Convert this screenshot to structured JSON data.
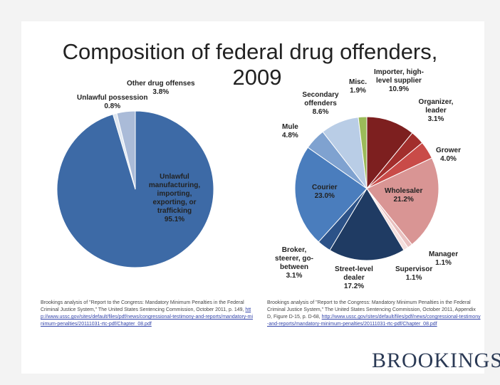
{
  "chart_data": [
    {
      "type": "pie",
      "title": "Composition of federal drug offenders, 2009",
      "slices": [
        {
          "label": "Unlawful manufacturing, importing, exporting, or trafficking",
          "value": 95.1,
          "text": "95.1%",
          "color": "#3d6aa6"
        },
        {
          "label": "Unlawful possession",
          "value": 0.8,
          "text": "0.8%",
          "color": "#dfe7f1"
        },
        {
          "label": "Other drug offenses",
          "value": 3.8,
          "text": "3.8%",
          "color": "#aabbd8"
        }
      ]
    },
    {
      "type": "pie",
      "slices": [
        {
          "label": "Importer, high-level supplier",
          "value": 10.9,
          "text": "10.9%",
          "color": "#7d1f1f"
        },
        {
          "label": "Organizer, leader",
          "value": 3.1,
          "text": "3.1%",
          "color": "#a22e2c"
        },
        {
          "label": "Grower",
          "value": 4.0,
          "text": "4.0%",
          "color": "#c94b48"
        },
        {
          "label": "Wholesaler",
          "value": 21.2,
          "text": "21.2%",
          "color": "#d99594"
        },
        {
          "label": "Manager",
          "value": 1.1,
          "text": "1.1%",
          "color": "#e9c0bf"
        },
        {
          "label": "Supervisor",
          "value": 1.1,
          "text": "1.1%",
          "color": "#f4dedd"
        },
        {
          "label": "Street-level dealer",
          "value": 17.2,
          "text": "17.2%",
          "color": "#1f3b63"
        },
        {
          "label": "Broker, steerer, go-between",
          "value": 3.1,
          "text": "3.1%",
          "color": "#2c5288"
        },
        {
          "label": "Courier",
          "value": 23.0,
          "text": "23.0%",
          "color": "#4a7dbd"
        },
        {
          "label": "Mule",
          "value": 4.8,
          "text": "4.8%",
          "color": "#7fa2d0"
        },
        {
          "label": "Secondary offenders",
          "value": 8.6,
          "text": "8.6%",
          "color": "#b9cde6"
        },
        {
          "label": "Misc.",
          "value": 1.9,
          "text": "1.9%",
          "color": "#9bbb59"
        }
      ]
    }
  ],
  "title_line1": "Composition of federal drug offenders,",
  "title_line2": "2009",
  "source_left": {
    "text": "Brookings analysis of \"Report to the Congress: Mandatory Minimum Penalties in the Federal Criminal Justice System,\" The United States Sentencing Commission, October 2011, p. 149,",
    "link": "http://www.ussc.gov/sites/default/files/pdf/news/congressional-testimony-and-reports/mandatory-minimum-penalties/20111031-rtc-pdf/Chapter_08.pdf"
  },
  "source_right": {
    "text": "Brookings analysis of \"Report to the Congress: Mandatory Minimum Penalties in the Federal Criminal Justice System,\" The United States Sentencing Commission, October 2011, Appendix D, Figure D-15, p. D-68,",
    "link": "http://www.ussc.gov/sites/default/files/pdf/news/congressional-testimony-and-reports/mandatory-minimum-penalties/20111031-rtc-pdf/Chapter_08.pdf"
  },
  "brand": "BROOKINGS"
}
